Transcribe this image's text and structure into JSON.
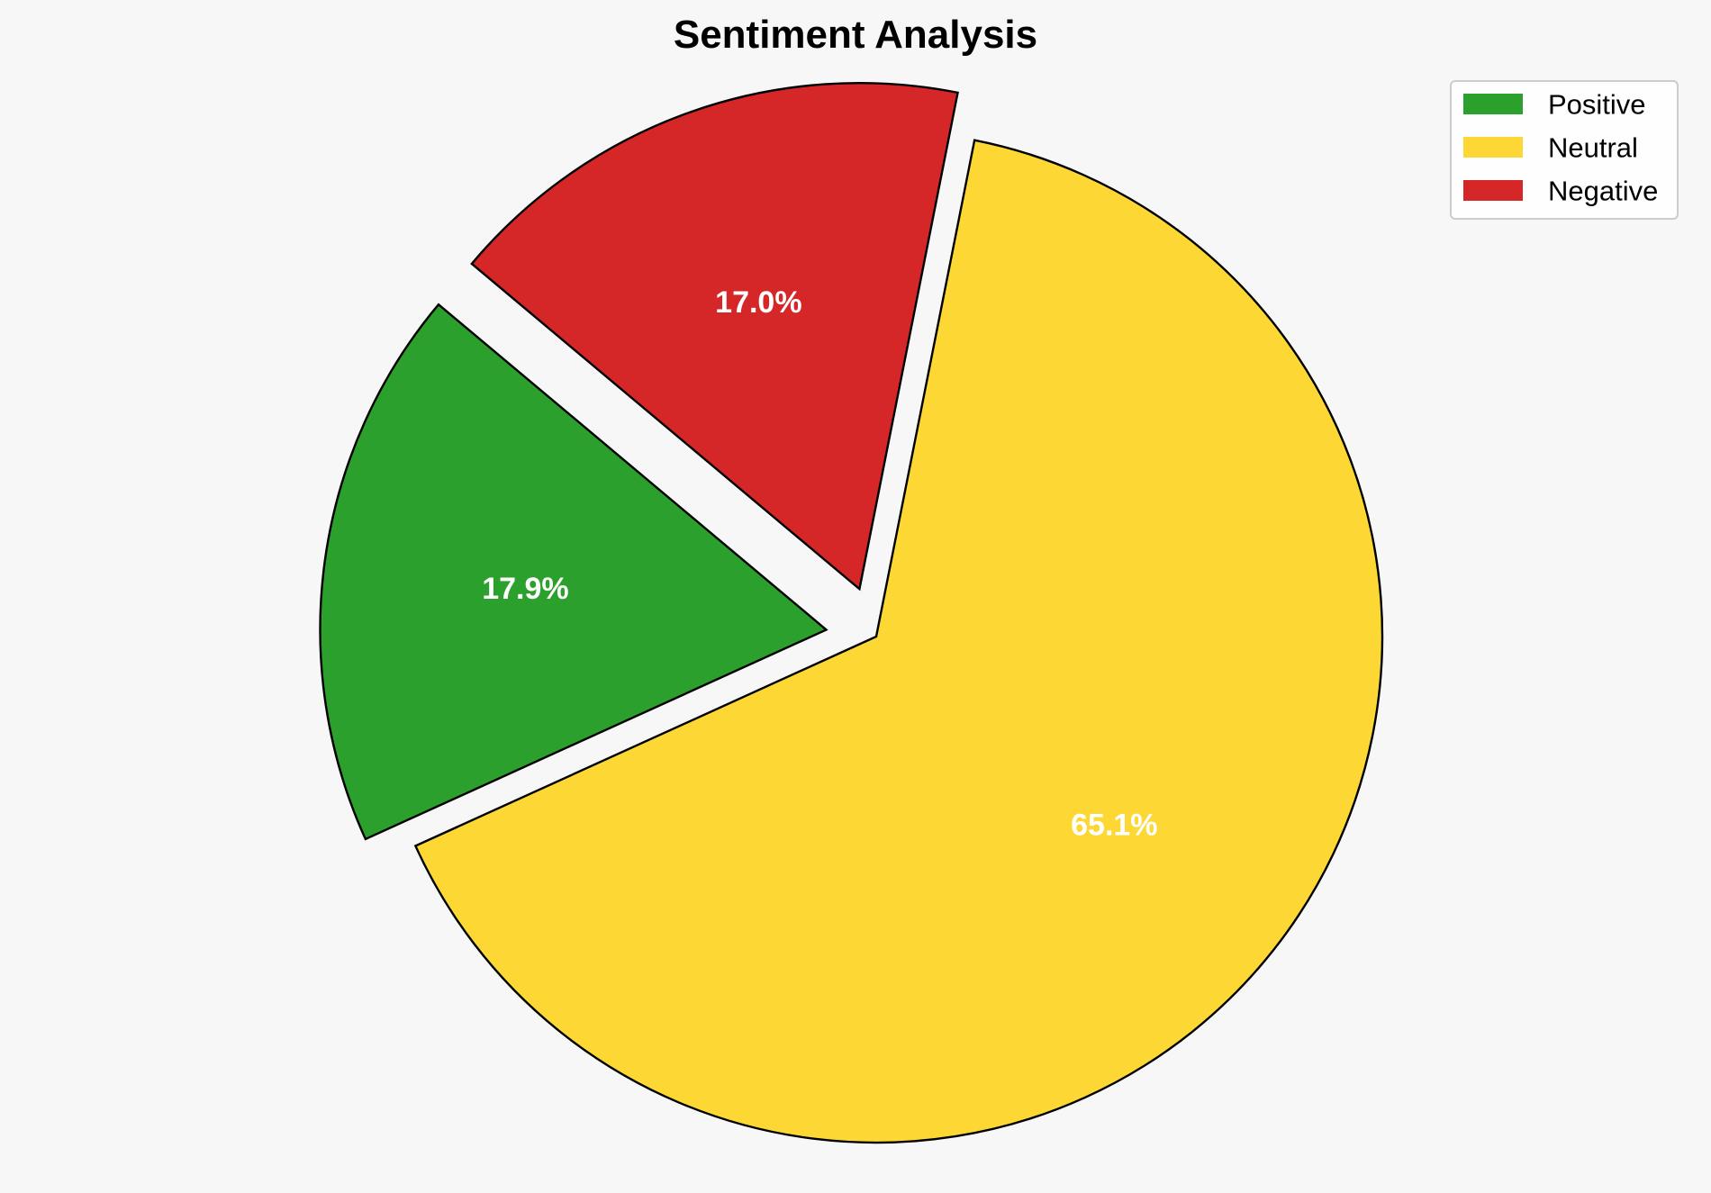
{
  "chart_data": {
    "type": "pie",
    "title": "Sentiment Analysis",
    "categories": [
      "Positive",
      "Neutral",
      "Negative"
    ],
    "values": [
      17.9,
      65.1,
      17.0
    ],
    "labels": [
      "17.9%",
      "65.1%",
      "17.0%"
    ],
    "colors": [
      "#2ca02c",
      "#fdd835",
      "#d62728"
    ],
    "exploded": [
      "Positive",
      "Negative"
    ],
    "legend_position": "top-right"
  }
}
